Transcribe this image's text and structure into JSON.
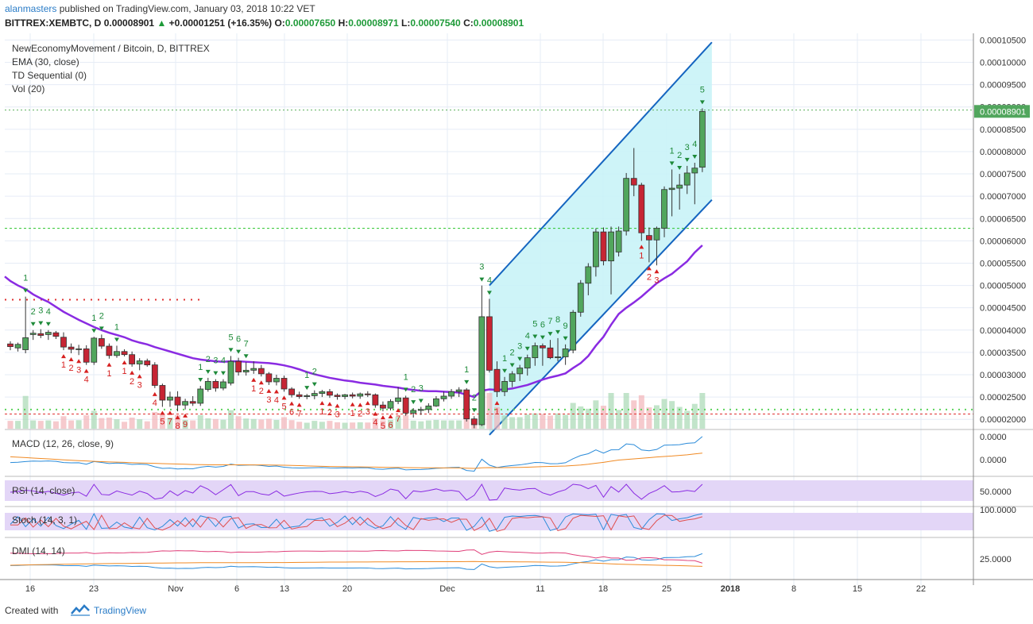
{
  "header": {
    "author": "alanmasters",
    "published_text": "published on TradingView.com, January 03, 2018 10:22 VET",
    "symbol": "BITTREX:XEMBTC, D",
    "price": "0.00008901",
    "change": "+0.00001251 (+16.35%)",
    "open_label": "O:",
    "open": "0.00007650",
    "high_label": "H:",
    "high": "0.00008971",
    "low_label": "L:",
    "low": "0.00007540",
    "close_label": "C:",
    "close": "0.00008901"
  },
  "legend": {
    "title": "NewEconomyMovement / Bitcoin, D, BITTREX",
    "ema": "EMA (30, close)",
    "td": "TD Sequential (0)",
    "vol": "Vol (20)"
  },
  "panes": {
    "macd": "MACD (12, 26, close, 9)",
    "rsi": "RSI (14, close)",
    "stoch": "Stoch (14, 3, 1)",
    "dmi": "DMI (14, 14)"
  },
  "price_axis": {
    "labels": [
      "0.00010500",
      "0.00010000",
      "0.00009500",
      "0.00009000",
      "0.00008500",
      "0.00008000",
      "0.00007500",
      "0.00007000",
      "0.00006500",
      "0.00006000",
      "0.00005500",
      "0.00005000",
      "0.00004500",
      "0.00004000",
      "0.00003500",
      "0.00003000",
      "0.00002500",
      "0.00002000"
    ],
    "current_price_label": "0.00008901"
  },
  "pane_axis": {
    "macd": [
      "0.0000",
      "0.0000"
    ],
    "rsi": [
      "50.0000"
    ],
    "stoch": [
      "100.0000"
    ],
    "dmi": [
      "25.0000"
    ]
  },
  "time_axis": [
    "16",
    "23",
    "Nov",
    "6",
    "13",
    "20",
    "Dec",
    "11",
    "18",
    "25",
    "2018",
    "8",
    "15",
    "22"
  ],
  "colors": {
    "up": "#51a65d",
    "down": "#c62534",
    "ema": "#8a2be2",
    "channel": "#1565c0",
    "channel_fill": "#c9f3f7",
    "td_green": "#1e8a3a",
    "td_red": "#d61f1f"
  },
  "footer": {
    "created_with": "Created with",
    "brand": "TradingView"
  },
  "chart_data": {
    "type": "candlestick",
    "title": "NewEconomyMovement / Bitcoin, D, BITTREX",
    "y_range": [
      1.79e-05,
      0.0001065
    ],
    "x_ticks": [
      "16",
      "23",
      "Nov",
      "6",
      "13",
      "20",
      "Dec",
      "11",
      "18",
      "25",
      "2018",
      "8",
      "15",
      "22"
    ],
    "candles": [
      {
        "o": 3.69e-05,
        "h": 3.75e-05,
        "l": 3.55e-05,
        "c": 3.63e-05
      },
      {
        "o": 3.6e-05,
        "h": 3.72e-05,
        "l": 3.52e-05,
        "c": 3.68e-05
      },
      {
        "o": 3.56e-05,
        "h": 4.75e-05,
        "l": 3.48e-05,
        "c": 3.83e-05
      },
      {
        "o": 3.9e-05,
        "h": 4e-05,
        "l": 3.78e-05,
        "c": 3.93e-05
      },
      {
        "o": 3.92e-05,
        "h": 4.02e-05,
        "l": 3.82e-05,
        "c": 3.88e-05
      },
      {
        "o": 3.9e-05,
        "h": 4e-05,
        "l": 3.78e-05,
        "c": 3.95e-05
      },
      {
        "o": 3.94e-05,
        "h": 3.98e-05,
        "l": 3.8e-05,
        "c": 3.86e-05
      },
      {
        "o": 3.84e-05,
        "h": 3.95e-05,
        "l": 3.55e-05,
        "c": 3.62e-05
      },
      {
        "o": 3.62e-05,
        "h": 3.7e-05,
        "l": 3.48e-05,
        "c": 3.57e-05
      },
      {
        "o": 3.57e-05,
        "h": 3.67e-05,
        "l": 3.44e-05,
        "c": 3.58e-05
      },
      {
        "o": 3.58e-05,
        "h": 3.66e-05,
        "l": 3.22e-05,
        "c": 3.28e-05
      },
      {
        "o": 3.28e-05,
        "h": 3.85e-05,
        "l": 3.22e-05,
        "c": 3.82e-05
      },
      {
        "o": 3.81e-05,
        "h": 3.9e-05,
        "l": 3.58e-05,
        "c": 3.64e-05
      },
      {
        "o": 3.64e-05,
        "h": 3.7e-05,
        "l": 3.36e-05,
        "c": 3.43e-05
      },
      {
        "o": 3.43e-05,
        "h": 3.65e-05,
        "l": 3.38e-05,
        "c": 3.52e-05
      },
      {
        "o": 3.52e-05,
        "h": 3.57e-05,
        "l": 3.41e-05,
        "c": 3.45e-05
      },
      {
        "o": 3.45e-05,
        "h": 3.52e-05,
        "l": 3.18e-05,
        "c": 3.24e-05
      },
      {
        "o": 3.24e-05,
        "h": 3.37e-05,
        "l": 3.1e-05,
        "c": 3.31e-05
      },
      {
        "o": 3.31e-05,
        "h": 3.36e-05,
        "l": 3.18e-05,
        "c": 3.22e-05
      },
      {
        "o": 3.22e-05,
        "h": 3.28e-05,
        "l": 2.7e-05,
        "c": 2.76e-05
      },
      {
        "o": 2.76e-05,
        "h": 2.8e-05,
        "l": 2.28e-05,
        "c": 2.43e-05
      },
      {
        "o": 2.43e-05,
        "h": 2.62e-05,
        "l": 2.28e-05,
        "c": 2.5e-05
      },
      {
        "o": 2.5e-05,
        "h": 2.63e-05,
        "l": 2.18e-05,
        "c": 2.32e-05
      },
      {
        "o": 2.32e-05,
        "h": 2.46e-05,
        "l": 2.22e-05,
        "c": 2.4e-05
      },
      {
        "o": 2.4e-05,
        "h": 2.52e-05,
        "l": 2.3e-05,
        "c": 2.36e-05
      },
      {
        "o": 2.36e-05,
        "h": 2.75e-05,
        "l": 2.3e-05,
        "c": 2.68e-05
      },
      {
        "o": 2.67e-05,
        "h": 2.93e-05,
        "l": 2.62e-05,
        "c": 2.85e-05
      },
      {
        "o": 2.85e-05,
        "h": 2.9e-05,
        "l": 2.62e-05,
        "c": 2.7e-05
      },
      {
        "o": 2.7e-05,
        "h": 2.9e-05,
        "l": 2.65e-05,
        "c": 2.84e-05
      },
      {
        "o": 2.81e-05,
        "h": 3.42e-05,
        "l": 2.76e-05,
        "c": 3.3e-05
      },
      {
        "o": 3.3e-05,
        "h": 3.38e-05,
        "l": 2.98e-05,
        "c": 3.06e-05
      },
      {
        "o": 3.06e-05,
        "h": 3.28e-05,
        "l": 2.98e-05,
        "c": 3.1e-05
      },
      {
        "o": 3.1e-05,
        "h": 3.3e-05,
        "l": 3.02e-05,
        "c": 3.14e-05
      },
      {
        "o": 3.14e-05,
        "h": 3.22e-05,
        "l": 2.96e-05,
        "c": 3.02e-05
      },
      {
        "o": 3.02e-05,
        "h": 3.06e-05,
        "l": 2.77e-05,
        "c": 2.84e-05
      },
      {
        "o": 2.84e-05,
        "h": 3e-05,
        "l": 2.76e-05,
        "c": 2.92e-05
      },
      {
        "o": 2.92e-05,
        "h": 2.98e-05,
        "l": 2.62e-05,
        "c": 2.68e-05
      },
      {
        "o": 2.68e-05,
        "h": 2.72e-05,
        "l": 2.49e-05,
        "c": 2.55e-05
      },
      {
        "o": 2.55e-05,
        "h": 2.62e-05,
        "l": 2.46e-05,
        "c": 2.51e-05
      },
      {
        "o": 2.51e-05,
        "h": 2.57e-05,
        "l": 2.45e-05,
        "c": 2.53e-05
      },
      {
        "o": 2.53e-05,
        "h": 2.65e-05,
        "l": 2.45e-05,
        "c": 2.58e-05
      },
      {
        "o": 2.58e-05,
        "h": 2.66e-05,
        "l": 2.5e-05,
        "c": 2.62e-05
      },
      {
        "o": 2.62e-05,
        "h": 2.68e-05,
        "l": 2.48e-05,
        "c": 2.54e-05
      },
      {
        "o": 2.54e-05,
        "h": 2.58e-05,
        "l": 2.44e-05,
        "c": 2.51e-05
      },
      {
        "o": 2.51e-05,
        "h": 2.57e-05,
        "l": 2.45e-05,
        "c": 2.55e-05
      },
      {
        "o": 2.55e-05,
        "h": 2.6e-05,
        "l": 2.47e-05,
        "c": 2.52e-05
      },
      {
        "o": 2.52e-05,
        "h": 2.6e-05,
        "l": 2.46e-05,
        "c": 2.57e-05
      },
      {
        "o": 2.57e-05,
        "h": 2.63e-05,
        "l": 2.5e-05,
        "c": 2.55e-05
      },
      {
        "o": 2.55e-05,
        "h": 2.58e-05,
        "l": 2.26e-05,
        "c": 2.32e-05
      },
      {
        "o": 2.32e-05,
        "h": 2.4e-05,
        "l": 2.18e-05,
        "c": 2.25e-05
      },
      {
        "o": 2.25e-05,
        "h": 2.45e-05,
        "l": 2.2e-05,
        "c": 2.4e-05
      },
      {
        "o": 2.4e-05,
        "h": 2.72e-05,
        "l": 2.34e-05,
        "c": 2.48e-05
      },
      {
        "o": 2.48e-05,
        "h": 2.53e-05,
        "l": 2.08e-05,
        "c": 2.14e-05
      },
      {
        "o": 2.14e-05,
        "h": 2.25e-05,
        "l": 2.04e-05,
        "c": 2.2e-05
      },
      {
        "o": 2.2e-05,
        "h": 2.28e-05,
        "l": 2.1e-05,
        "c": 2.22e-05
      },
      {
        "o": 2.22e-05,
        "h": 2.36e-05,
        "l": 2.14e-05,
        "c": 2.3e-05
      },
      {
        "o": 2.3e-05,
        "h": 2.52e-05,
        "l": 2.28e-05,
        "c": 2.46e-05
      },
      {
        "o": 2.46e-05,
        "h": 2.62e-05,
        "l": 2.4e-05,
        "c": 2.52e-05
      },
      {
        "o": 2.52e-05,
        "h": 2.68e-05,
        "l": 2.46e-05,
        "c": 2.62e-05
      },
      {
        "o": 2.62e-05,
        "h": 2.72e-05,
        "l": 2.5e-05,
        "c": 2.66e-05
      },
      {
        "o": 2.66e-05,
        "h": 2.7e-05,
        "l": 1.95e-05,
        "c": 2.01e-05
      },
      {
        "o": 2.01e-05,
        "h": 2.07e-05,
        "l": 1.8e-05,
        "c": 1.88e-05
      },
      {
        "o": 1.88e-05,
        "h": 5e-05,
        "l": 1.85e-05,
        "c": 4.3e-05
      },
      {
        "o": 4.3e-05,
        "h": 4.7e-05,
        "l": 3.05e-05,
        "c": 3.1e-05
      },
      {
        "o": 3.12e-05,
        "h": 3.3e-05,
        "l": 2.5e-05,
        "c": 2.62e-05
      },
      {
        "o": 2.62e-05,
        "h": 2.95e-05,
        "l": 2.52e-05,
        "c": 2.85e-05
      },
      {
        "o": 2.85e-05,
        "h": 3.08e-05,
        "l": 2.72e-05,
        "c": 3.02e-05
      },
      {
        "o": 3.02e-05,
        "h": 3.22e-05,
        "l": 2.86e-05,
        "c": 3.15e-05
      },
      {
        "o": 3.15e-05,
        "h": 3.45e-05,
        "l": 2.98e-05,
        "c": 3.38e-05
      },
      {
        "o": 3.38e-05,
        "h": 3.72e-05,
        "l": 3.2e-05,
        "c": 3.65e-05
      },
      {
        "o": 3.65e-05,
        "h": 3.7e-05,
        "l": 3.2e-05,
        "c": 3.6e-05
      },
      {
        "o": 3.6e-05,
        "h": 3.78e-05,
        "l": 3.35e-05,
        "c": 3.38e-05
      },
      {
        "o": 3.38e-05,
        "h": 3.82e-05,
        "l": 3.3e-05,
        "c": 3.4e-05
      },
      {
        "o": 3.4e-05,
        "h": 3.68e-05,
        "l": 3.22e-05,
        "c": 3.58e-05
      },
      {
        "o": 3.55e-05,
        "h": 4.45e-05,
        "l": 3.48e-05,
        "c": 4.4e-05
      },
      {
        "o": 4.4e-05,
        "h": 5.12e-05,
        "l": 4.3e-05,
        "c": 5.05e-05
      },
      {
        "o": 5.05e-05,
        "h": 5.5e-05,
        "l": 4.78e-05,
        "c": 5.42e-05
      },
      {
        "o": 5.42e-05,
        "h": 6.28e-05,
        "l": 5.2e-05,
        "c": 6.2e-05
      },
      {
        "o": 6.2e-05,
        "h": 6.3e-05,
        "l": 5.45e-05,
        "c": 5.55e-05
      },
      {
        "o": 5.55e-05,
        "h": 6.32e-05,
        "l": 4.8e-05,
        "c": 6.2e-05
      },
      {
        "o": 5.75e-05,
        "h": 6.32e-05,
        "l": 5.65e-05,
        "c": 6.22e-05
      },
      {
        "o": 6.22e-05,
        "h": 7.52e-05,
        "l": 6.12e-05,
        "c": 7.4e-05
      },
      {
        "o": 7.4e-05,
        "h": 8.08e-05,
        "l": 7e-05,
        "c": 7.25e-05
      },
      {
        "o": 7.25e-05,
        "h": 7.3e-05,
        "l": 6e-05,
        "c": 6.18e-05
      },
      {
        "o": 6.12e-05,
        "h": 6.3e-05,
        "l": 5.52e-05,
        "c": 6.02e-05
      },
      {
        "o": 6.02e-05,
        "h": 6.32e-05,
        "l": 5.45e-05,
        "c": 6.28e-05
      },
      {
        "o": 6.28e-05,
        "h": 7.22e-05,
        "l": 6.08e-05,
        "c": 7.15e-05
      },
      {
        "o": 7.15e-05,
        "h": 7.6e-05,
        "l": 6.55e-05,
        "c": 7.18e-05
      },
      {
        "o": 7.18e-05,
        "h": 7.5e-05,
        "l": 6.7e-05,
        "c": 7.25e-05
      },
      {
        "o": 7.25e-05,
        "h": 7.68e-05,
        "l": 7.05e-05,
        "c": 7.52e-05
      },
      {
        "o": 7.52e-05,
        "h": 7.75e-05,
        "l": 6.82e-05,
        "c": 7.63e-05
      },
      {
        "o": 7.65e-05,
        "h": 8.97e-05,
        "l": 7.54e-05,
        "c": 8.9e-05
      }
    ],
    "ema_30": [
      5.1e-05,
      5e-05,
      4.92e-05,
      4.8e-05,
      4.71e-05,
      4.63e-05,
      4.52e-05,
      4.41e-05,
      4.32e-05,
      4.23e-05,
      4.15e-05,
      4.07e-05,
      4e-05,
      3.94e-05,
      3.89e-05,
      3.84e-05,
      3.77e-05,
      3.72e-05,
      3.68e-05,
      3.62e-05,
      3.57e-05,
      3.52e-05,
      3.47e-05,
      3.42e-05,
      3.37e-05,
      3.34e-05,
      3.32e-05,
      3.3e-05,
      3.29e-05,
      3.3e-05,
      3.3e-05,
      3.29e-05,
      3.28e-05,
      3.27e-05,
      3.26e-05,
      3.24e-05,
      3.21e-05,
      3.17e-05,
      3.12e-05,
      3.06e-05,
      3.01e-05,
      2.97e-05,
      2.93e-05,
      2.9e-05,
      2.87e-05,
      2.85e-05,
      2.82e-05,
      2.8e-05,
      2.78e-05,
      2.75e-05,
      2.73e-05,
      2.71e-05,
      2.68e-05,
      2.66e-05,
      2.64e-05,
      2.63e-05,
      2.63e-05,
      2.62e-05,
      2.61e-05,
      2.6e-05,
      2.55e-05,
      2.5e-05,
      2.64e-05,
      2.67e-05,
      2.66e-05,
      2.67e-05,
      2.69e-05,
      2.73e-05,
      2.77e-05,
      2.83e-05,
      2.89e-05,
      2.94e-05,
      2.98e-05,
      3.03e-05,
      3.15e-05,
      3.26e-05,
      3.42e-05,
      3.65e-05,
      3.85e-05,
      4.12e-05,
      4.36e-05,
      4.5e-05,
      4.62e-05,
      4.75e-05,
      4.9e-05,
      5.05e-05,
      5.16e-05,
      5.26e-05,
      5.4e-05,
      5.54e-05,
      5.74e-05,
      5.9e-05
    ],
    "channel": {
      "upper": [
        [
          63,
          5e-05
        ],
        [
          91,
          0.0001045
        ]
      ],
      "lower": [
        [
          63,
          1.65e-05
        ],
        [
          91,
          6.92e-05
        ]
      ]
    },
    "horizontal_levels": [
      8.93e-05,
      6.28e-05,
      2.22e-05,
      2.12e-05,
      4.68e-05
    ],
    "td_counts": [
      {
        "i": 2,
        "t": "1",
        "side": "above"
      },
      {
        "i": 3,
        "t": "2",
        "side": "above"
      },
      {
        "i": 4,
        "t": "3",
        "side": "above"
      },
      {
        "i": 5,
        "t": "4",
        "side": "above"
      },
      {
        "i": 7,
        "t": "1",
        "side": "below"
      },
      {
        "i": 8,
        "t": "2",
        "side": "below"
      },
      {
        "i": 9,
        "t": "3",
        "side": "below"
      },
      {
        "i": 10,
        "t": "4",
        "side": "below"
      },
      {
        "i": 11,
        "t": "1",
        "side": "above"
      },
      {
        "i": 12,
        "t": "2",
        "side": "above"
      },
      {
        "i": 13,
        "t": "1",
        "side": "below"
      },
      {
        "i": 14,
        "t": "1",
        "side": "above"
      },
      {
        "i": 15,
        "t": "1",
        "side": "below"
      },
      {
        "i": 16,
        "t": "2",
        "side": "below"
      },
      {
        "i": 17,
        "t": "3",
        "side": "below"
      },
      {
        "i": 19,
        "t": "4",
        "side": "below"
      },
      {
        "i": 20,
        "t": "5",
        "side": "below"
      },
      {
        "i": 21,
        "t": "7",
        "side": "below"
      },
      {
        "i": 22,
        "t": "8",
        "side": "below"
      },
      {
        "i": 23,
        "t": "9",
        "side": "below"
      },
      {
        "i": 25,
        "t": "1",
        "side": "above"
      },
      {
        "i": 26,
        "t": "2",
        "side": "above"
      },
      {
        "i": 27,
        "t": "3",
        "side": "above"
      },
      {
        "i": 28,
        "t": "4",
        "side": "above"
      },
      {
        "i": 29,
        "t": "5",
        "side": "above"
      },
      {
        "i": 30,
        "t": "6",
        "side": "above"
      },
      {
        "i": 31,
        "t": "7",
        "side": "above"
      },
      {
        "i": 32,
        "t": "1",
        "side": "below"
      },
      {
        "i": 33,
        "t": "2",
        "side": "below"
      },
      {
        "i": 34,
        "t": "3",
        "side": "below"
      },
      {
        "i": 35,
        "t": "4",
        "side": "below"
      },
      {
        "i": 36,
        "t": "5",
        "side": "below"
      },
      {
        "i": 37,
        "t": "6",
        "side": "below"
      },
      {
        "i": 38,
        "t": "7",
        "side": "below"
      },
      {
        "i": 39,
        "t": "1",
        "side": "above"
      },
      {
        "i": 40,
        "t": "2",
        "side": "above"
      },
      {
        "i": 41,
        "t": "1",
        "side": "below"
      },
      {
        "i": 42,
        "t": "2",
        "side": "below"
      },
      {
        "i": 43,
        "t": "3",
        "side": "below"
      },
      {
        "i": 45,
        "t": "1",
        "side": "below"
      },
      {
        "i": 46,
        "t": "2",
        "side": "below"
      },
      {
        "i": 47,
        "t": "3",
        "side": "below"
      },
      {
        "i": 48,
        "t": "4",
        "side": "below"
      },
      {
        "i": 49,
        "t": "5",
        "side": "below"
      },
      {
        "i": 50,
        "t": "6",
        "side": "below"
      },
      {
        "i": 51,
        "t": "7",
        "side": "below"
      },
      {
        "i": 52,
        "t": "1",
        "side": "above"
      },
      {
        "i": 53,
        "t": "2",
        "side": "above"
      },
      {
        "i": 54,
        "t": "3",
        "side": "above"
      },
      {
        "i": 60,
        "t": "1",
        "side": "above"
      },
      {
        "i": 61,
        "t": "2",
        "side": "above"
      },
      {
        "i": 62,
        "t": "3",
        "side": "above"
      },
      {
        "i": 63,
        "t": "4",
        "side": "above"
      },
      {
        "i": 64,
        "t": "1",
        "side": "below"
      },
      {
        "i": 65,
        "t": "1",
        "side": "above"
      },
      {
        "i": 66,
        "t": "2",
        "side": "above"
      },
      {
        "i": 67,
        "t": "3",
        "side": "above"
      },
      {
        "i": 68,
        "t": "4",
        "side": "above"
      },
      {
        "i": 69,
        "t": "5",
        "side": "above"
      },
      {
        "i": 70,
        "t": "6",
        "side": "above"
      },
      {
        "i": 71,
        "t": "7",
        "side": "above"
      },
      {
        "i": 72,
        "t": "8",
        "side": "above"
      },
      {
        "i": 73,
        "t": "9",
        "side": "above"
      },
      {
        "i": 83,
        "t": "1",
        "side": "below"
      },
      {
        "i": 84,
        "t": "2",
        "side": "below"
      },
      {
        "i": 85,
        "t": "3",
        "side": "below"
      },
      {
        "i": 87,
        "t": "1",
        "side": "above"
      },
      {
        "i": 88,
        "t": "2",
        "side": "above"
      },
      {
        "i": 89,
        "t": "3",
        "side": "above"
      },
      {
        "i": 90,
        "t": "4",
        "side": "above"
      },
      {
        "i": 91,
        "t": "5",
        "side": "above"
      }
    ]
  }
}
